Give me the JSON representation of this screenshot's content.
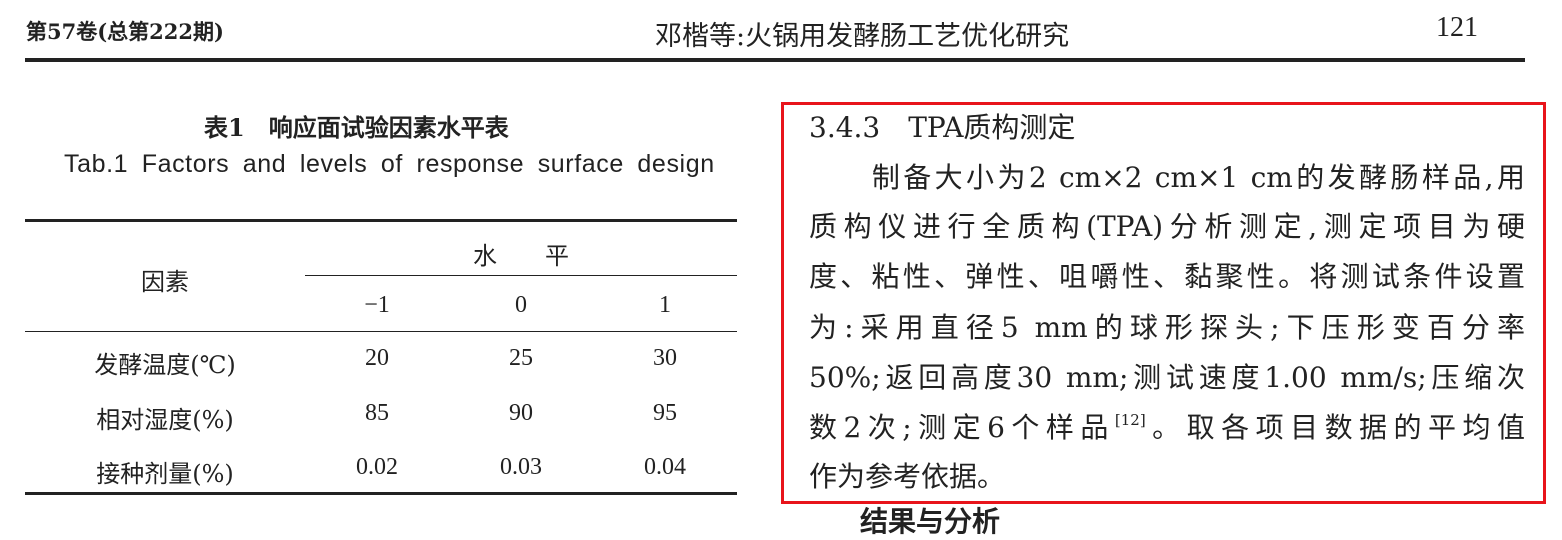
{
  "header": {
    "journal_volume": "第57卷(总第222期)",
    "article_title": "邓楷等:火锅用发酵肠工艺优化研究",
    "page_number": "121"
  },
  "table": {
    "caption_zh": "表1　响应面试验因素水平表",
    "caption_en": "Tab.1  Factors and levels of response surface design",
    "factor_header": "因素",
    "level_header": "水　　平",
    "levels": [
      "−1",
      "0",
      "1"
    ],
    "rows": [
      {
        "factor": "发酵温度(℃)",
        "values": [
          "20",
          "25",
          "30"
        ]
      },
      {
        "factor": "相对湿度(%)",
        "values": [
          "85",
          "90",
          "95"
        ]
      },
      {
        "factor": "接种剂量(%)",
        "values": [
          "0.02",
          "0.03",
          "0.04"
        ]
      }
    ]
  },
  "section": {
    "heading": "3.4.3　TPA质构测定",
    "lines": [
      "　　制备大小为2 cm×2 cm×1 cm的发酵肠样品,用",
      "质构仪进行全质构(TPA)分析测定,测定项目为硬",
      "度、粘性、弹性、咀嚼性、黏聚性。将测试条件设置",
      "为:采用直径5 mm的球形探头;下压形变百分率",
      "50%;返回高度30 mm;测试速度1.00 mm/s;压缩次",
      "数2次;测定6个样品"
    ],
    "citation": "[12]",
    "line7_rest": "。取各项目数据的平均值",
    "line8": "作为参考依据。",
    "highlight_color": "#e8141b"
  },
  "next_heading_partial": "结果与分析"
}
